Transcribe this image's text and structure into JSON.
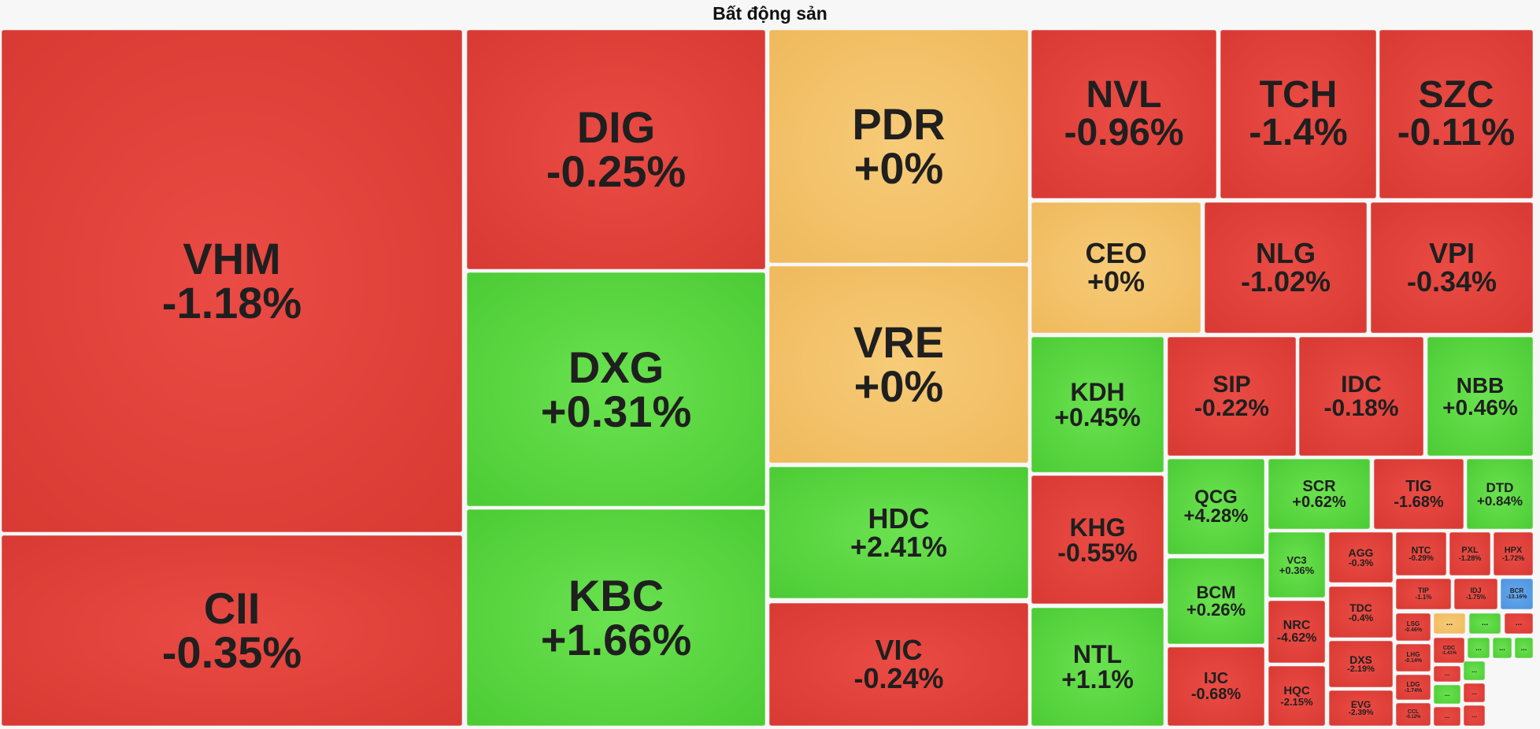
{
  "title": "Bất động sản",
  "colors": {
    "down": "#e04038",
    "up": "#5ad640",
    "flat": "#f2c064",
    "floor": "#5a9ee6",
    "background": "#f7f7f7"
  },
  "tiles": [
    {
      "symbol": "VHM",
      "change": "-1.18%",
      "status": "down"
    },
    {
      "symbol": "CII",
      "change": "-0.35%",
      "status": "down"
    },
    {
      "symbol": "DIG",
      "change": "-0.25%",
      "status": "down"
    },
    {
      "symbol": "DXG",
      "change": "+0.31%",
      "status": "up"
    },
    {
      "symbol": "KBC",
      "change": "+1.66%",
      "status": "up"
    },
    {
      "symbol": "PDR",
      "change": "+0%",
      "status": "flat"
    },
    {
      "symbol": "VRE",
      "change": "+0%",
      "status": "flat"
    },
    {
      "symbol": "HDC",
      "change": "+2.41%",
      "status": "up"
    },
    {
      "symbol": "VIC",
      "change": "-0.24%",
      "status": "down"
    },
    {
      "symbol": "NVL",
      "change": "-0.96%",
      "status": "down"
    },
    {
      "symbol": "TCH",
      "change": "-1.4%",
      "status": "down"
    },
    {
      "symbol": "SZC",
      "change": "-0.11%",
      "status": "down"
    },
    {
      "symbol": "CEO",
      "change": "+0%",
      "status": "flat"
    },
    {
      "symbol": "NLG",
      "change": "-1.02%",
      "status": "down"
    },
    {
      "symbol": "VPI",
      "change": "-0.34%",
      "status": "down"
    },
    {
      "symbol": "KDH",
      "change": "+0.45%",
      "status": "up"
    },
    {
      "symbol": "SIP",
      "change": "-0.22%",
      "status": "down"
    },
    {
      "symbol": "IDC",
      "change": "-0.18%",
      "status": "down"
    },
    {
      "symbol": "NBB",
      "change": "+0.46%",
      "status": "up"
    },
    {
      "symbol": "KHG",
      "change": "-0.55%",
      "status": "down"
    },
    {
      "symbol": "NTL",
      "change": "+1.1%",
      "status": "up"
    },
    {
      "symbol": "QCG",
      "change": "+4.28%",
      "status": "up"
    },
    {
      "symbol": "SCR",
      "change": "+0.62%",
      "status": "up"
    },
    {
      "symbol": "TIG",
      "change": "-1.68%",
      "status": "down"
    },
    {
      "symbol": "DTD",
      "change": "+0.84%",
      "status": "up"
    },
    {
      "symbol": "BCM",
      "change": "+0.26%",
      "status": "up"
    },
    {
      "symbol": "IJC",
      "change": "-0.68%",
      "status": "down"
    },
    {
      "symbol": "VC3",
      "change": "+0.36%",
      "status": "up"
    },
    {
      "symbol": "AGG",
      "change": "-0.3%",
      "status": "down"
    },
    {
      "symbol": "NTC",
      "change": "-0.29%",
      "status": "down"
    },
    {
      "symbol": "PXL",
      "change": "-1.28%",
      "status": "down"
    },
    {
      "symbol": "HPX",
      "change": "-1.72%",
      "status": "down"
    },
    {
      "symbol": "TIP",
      "change": "-1.1%",
      "status": "down"
    },
    {
      "symbol": "IDJ",
      "change": "-1.75%",
      "status": "down"
    },
    {
      "symbol": "BCR",
      "change": "-13.16%",
      "status": "floor"
    },
    {
      "symbol": "NRC",
      "change": "-4.62%",
      "status": "down"
    },
    {
      "symbol": "TDC",
      "change": "-0.4%",
      "status": "down"
    },
    {
      "symbol": "DXS",
      "change": "-2.19%",
      "status": "down"
    },
    {
      "symbol": "HQC",
      "change": "-2.15%",
      "status": "down"
    },
    {
      "symbol": "EVG",
      "change": "-2.39%",
      "status": "down"
    },
    {
      "symbol": "LSG",
      "change": "-0.46%",
      "status": "down"
    },
    {
      "symbol": "CDC",
      "change": "-1.41%",
      "status": "down"
    },
    {
      "symbol": "LHG",
      "change": "-0.14%",
      "status": "down"
    },
    {
      "symbol": "LDG",
      "change": "-1.74%",
      "status": "down"
    },
    {
      "symbol": "CCL",
      "change": "-0.12%",
      "status": "down"
    },
    {
      "symbol": "...",
      "change": "",
      "status": "flat"
    },
    {
      "symbol": "...",
      "change": "",
      "status": "up"
    },
    {
      "symbol": "...",
      "change": "",
      "status": "down"
    },
    {
      "symbol": "...",
      "change": "",
      "status": "up"
    },
    {
      "symbol": "...",
      "change": "",
      "status": "up"
    },
    {
      "symbol": "...",
      "change": "",
      "status": "up"
    },
    {
      "symbol": "...",
      "change": "",
      "status": "down"
    },
    {
      "symbol": "...",
      "change": "",
      "status": "up"
    },
    {
      "symbol": "...",
      "change": "",
      "status": "down"
    },
    {
      "symbol": "...",
      "change": "",
      "status": "up"
    },
    {
      "symbol": "...",
      "change": "",
      "status": "down"
    },
    {
      "symbol": "...",
      "change": "",
      "status": "down"
    }
  ]
}
